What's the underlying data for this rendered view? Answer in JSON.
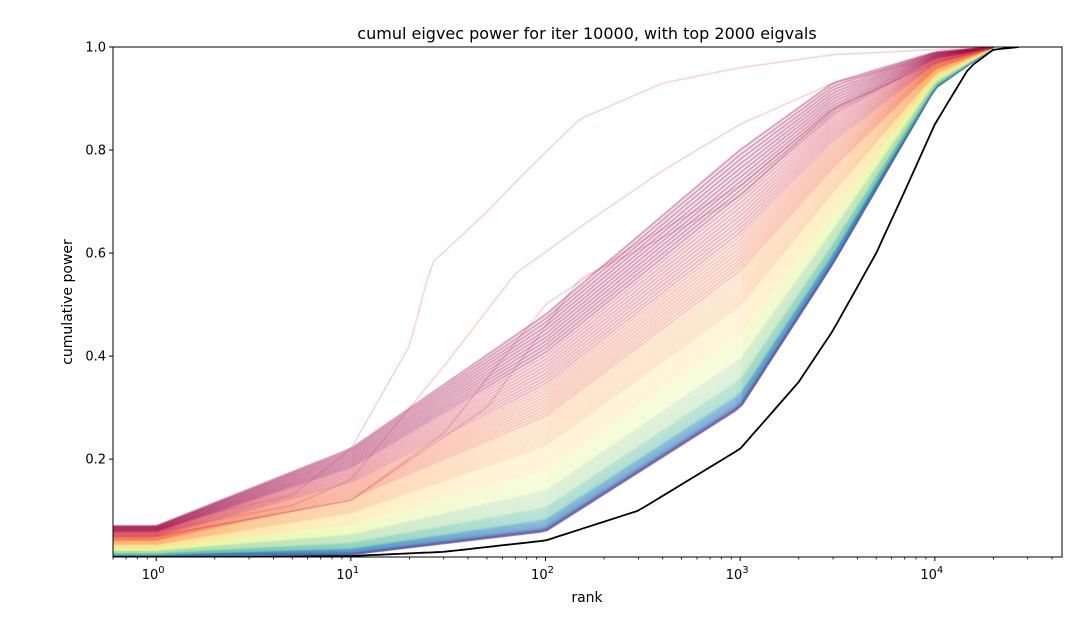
{
  "chart_data": {
    "type": "line",
    "title": "cumul eigvec power for iter 10000, with top 2000 eigvals",
    "xlabel": "rank",
    "ylabel": "cumulative power",
    "xscale": "log",
    "xlim": [
      0.6,
      45000
    ],
    "ylim": [
      0.01,
      1.0
    ],
    "yticks": [
      {
        "value": 0.2,
        "label": "0.2"
      },
      {
        "value": 0.4,
        "label": "0.4"
      },
      {
        "value": 0.6,
        "label": "0.6"
      },
      {
        "value": 0.8,
        "label": "0.8"
      },
      {
        "value": 1.0,
        "label": "1.0"
      }
    ],
    "xticks": [
      {
        "value": 1,
        "base": "10",
        "exp": "0"
      },
      {
        "value": 10,
        "base": "10",
        "exp": "1"
      },
      {
        "value": 100,
        "base": "10",
        "exp": "2"
      },
      {
        "value": 1000,
        "base": "10",
        "exp": "3"
      },
      {
        "value": 10000,
        "base": "10",
        "exp": "4"
      }
    ],
    "grid": false,
    "legend": "none",
    "colormap": [
      "#5e4fa2",
      "#3288bd",
      "#66c2a5",
      "#abdda4",
      "#e6f598",
      "#fee08b",
      "#fdae61",
      "#f46d43",
      "#d53e4f",
      "#9e0142"
    ],
    "series_count": 2000,
    "reference_line": {
      "color": "#000000",
      "x": [
        0.6,
        1,
        3,
        10,
        30,
        100,
        300,
        1000,
        2000,
        3000,
        5000,
        7000,
        10000,
        15000,
        20000,
        27000
      ],
      "y": [
        0.01,
        0.01,
        0.01,
        0.012,
        0.02,
        0.042,
        0.1,
        0.22,
        0.35,
        0.45,
        0.6,
        0.72,
        0.85,
        0.96,
        0.995,
        1.0
      ]
    },
    "bundle_envelope": {
      "x": [
        0.6,
        1,
        10,
        100,
        1000,
        3000,
        10000,
        20000
      ],
      "low": [
        0.012,
        0.012,
        0.015,
        0.06,
        0.3,
        0.58,
        0.92,
        1.0
      ],
      "high": [
        0.07,
        0.07,
        0.22,
        0.48,
        0.8,
        0.93,
        0.99,
        1.0
      ]
    },
    "outlier_series": [
      {
        "x": [
          0.6,
          1,
          5,
          10,
          20,
          26,
          50,
          80,
          150,
          400,
          1000,
          3000,
          10000,
          20000
        ],
        "y": [
          0.07,
          0.07,
          0.13,
          0.22,
          0.42,
          0.58,
          0.68,
          0.76,
          0.86,
          0.93,
          0.96,
          0.985,
          0.995,
          1.0
        ]
      },
      {
        "x": [
          0.6,
          1,
          5,
          10,
          30,
          70,
          150,
          400,
          1000,
          3000,
          10000,
          20000
        ],
        "y": [
          0.06,
          0.06,
          0.11,
          0.16,
          0.38,
          0.56,
          0.65,
          0.76,
          0.85,
          0.93,
          0.98,
          1.0
        ]
      },
      {
        "x": [
          0.6,
          1,
          10,
          30,
          100,
          300,
          1000,
          3000,
          10000,
          20000
        ],
        "y": [
          0.05,
          0.05,
          0.12,
          0.25,
          0.5,
          0.62,
          0.73,
          0.88,
          0.97,
          1.0
        ]
      },
      {
        "x": [
          0.6,
          1,
          10,
          50,
          150,
          400,
          1000,
          3000,
          10000,
          20000
        ],
        "y": [
          0.05,
          0.05,
          0.12,
          0.3,
          0.55,
          0.63,
          0.71,
          0.88,
          0.97,
          1.0
        ]
      }
    ]
  }
}
